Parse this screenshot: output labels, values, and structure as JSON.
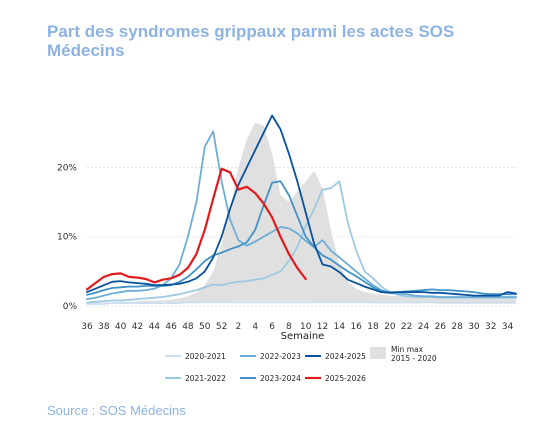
{
  "title": "Part des syndromes grippaux parmi les actes SOS Médecins",
  "source": "Source : SOS Médecins",
  "chart_data": {
    "type": "line",
    "xlabel": "Semaine",
    "ylabel": "",
    "x_tick_labels": [
      "36",
      "38",
      "40",
      "42",
      "44",
      "46",
      "48",
      "50",
      "52",
      "2",
      "4",
      "6",
      "8",
      "10",
      "12",
      "14",
      "16",
      "18",
      "20",
      "22",
      "24",
      "26",
      "28",
      "30",
      "32",
      "34"
    ],
    "y_tick_labels": [
      "0%",
      "10%",
      "20%"
    ],
    "ylim": [
      0,
      28
    ],
    "grid": true,
    "legend_position": "bottom",
    "band": {
      "name": "Min max 2015 - 2020",
      "color": "#e0e0e0",
      "upper": [
        0.5,
        0.5,
        0.5,
        0.5,
        0.6,
        0.6,
        0.7,
        0.8,
        0.8,
        0.8,
        0.9,
        1.1,
        1.4,
        1.9,
        3.0,
        5.0,
        9.0,
        14.0,
        20.0,
        24.0,
        26.5,
        26.0,
        22.0,
        16.0,
        15.0,
        16.5,
        18.0,
        19.5,
        17.0,
        11.0,
        6.0,
        3.5,
        2.5,
        2.0,
        1.8,
        1.6,
        1.5,
        1.4,
        1.4,
        1.3,
        1.3,
        1.3,
        1.2,
        1.2,
        1.2,
        1.2,
        1.2,
        1.2,
        1.2,
        1.2,
        1.2,
        1.2
      ],
      "lower": [
        0.3,
        0.3,
        0.3,
        0.3,
        0.3,
        0.3,
        0.3,
        0.3,
        0.4,
        0.4,
        0.4,
        0.4,
        0.4,
        0.4,
        0.5,
        0.5,
        0.5,
        0.6,
        0.6,
        0.6,
        0.6,
        0.6,
        0.6,
        0.6,
        0.6,
        0.6,
        0.6,
        0.6,
        0.5,
        0.5,
        0.5,
        0.5,
        0.5,
        0.5,
        0.4,
        0.4,
        0.4,
        0.4,
        0.4,
        0.4,
        0.4,
        0.4,
        0.3,
        0.3,
        0.3,
        0.3,
        0.3,
        0.3,
        0.3,
        0.3,
        0.3,
        0.3
      ]
    },
    "series": [
      {
        "name": "2020-2021",
        "color": "#c9dff0",
        "values": [
          0.3,
          0.3,
          0.3,
          0.4,
          0.4,
          0.4,
          0.4,
          0.4,
          0.4,
          0.4,
          0.4,
          0.4,
          0.5,
          0.5,
          0.5,
          0.5,
          0.5,
          0.5,
          0.5,
          0.5,
          0.5,
          0.5,
          0.5,
          0.5,
          0.5,
          0.5,
          0.5,
          0.5,
          0.5,
          0.5,
          0.5,
          0.5,
          0.5,
          0.5,
          0.5,
          0.5,
          0.5,
          0.5,
          0.5,
          0.5,
          0.5,
          0.5,
          0.5,
          0.5,
          0.5,
          0.5,
          0.5,
          0.5,
          0.5,
          0.5,
          0.5,
          0.5
        ]
      },
      {
        "name": "2021-2022",
        "color": "#9ecae1",
        "values": [
          0.5,
          0.6,
          0.7,
          0.8,
          0.8,
          0.9,
          1.0,
          1.1,
          1.2,
          1.3,
          1.5,
          1.7,
          2.0,
          2.3,
          2.7,
          3.1,
          3.0,
          3.3,
          3.5,
          3.6,
          3.8,
          4.0,
          4.5,
          5.0,
          6.5,
          8.5,
          11.5,
          14.0,
          16.8,
          17.0,
          18.0,
          12.0,
          8.0,
          5.0,
          4.0,
          2.8,
          2.0,
          1.6,
          1.4,
          1.3,
          1.3,
          1.3,
          1.2,
          1.2,
          1.2,
          1.2,
          1.2,
          1.2,
          1.2,
          1.2,
          1.2,
          1.2
        ]
      },
      {
        "name": "2022-2023",
        "color": "#6baed6",
        "values": [
          1.0,
          1.2,
          1.5,
          1.8,
          2.0,
          2.2,
          2.2,
          2.3,
          2.5,
          3.0,
          4.0,
          6.0,
          10.0,
          15.0,
          23.0,
          25.2,
          18.0,
          12.5,
          9.5,
          8.7,
          9.3,
          10.0,
          10.7,
          11.4,
          11.2,
          10.5,
          9.4,
          8.5,
          9.5,
          8.0,
          7.0,
          6.0,
          5.0,
          4.0,
          3.0,
          2.3,
          1.9,
          1.8,
          1.7,
          1.5,
          1.4,
          1.4,
          1.3,
          1.3,
          1.3,
          1.3,
          1.3,
          1.3,
          1.3,
          1.3,
          1.3,
          1.3
        ]
      },
      {
        "name": "2023-2024",
        "color": "#4292c6",
        "values": [
          1.6,
          1.9,
          2.3,
          2.6,
          2.7,
          2.8,
          2.8,
          2.9,
          2.9,
          2.9,
          3.0,
          3.5,
          4.2,
          5.3,
          6.5,
          7.3,
          7.7,
          8.2,
          8.6,
          9.2,
          11.0,
          14.5,
          17.8,
          18.0,
          16.0,
          13.0,
          10.0,
          8.5,
          7.3,
          6.7,
          5.8,
          5.0,
          4.3,
          3.5,
          2.7,
          2.2,
          2.0,
          2.0,
          2.1,
          2.2,
          2.3,
          2.4,
          2.3,
          2.3,
          2.2,
          2.1,
          2.0,
          1.8,
          1.7,
          1.7,
          1.7,
          1.7
        ]
      },
      {
        "name": "2024-2025",
        "color": "#08519c",
        "values": [
          2.0,
          2.5,
          3.0,
          3.5,
          3.6,
          3.4,
          3.3,
          3.2,
          3.0,
          3.0,
          3.1,
          3.2,
          3.5,
          4.0,
          5.0,
          7.0,
          10.0,
          14.0,
          17.5,
          20.0,
          22.5,
          25.0,
          27.5,
          25.5,
          22.0,
          18.0,
          13.5,
          9.0,
          6.0,
          5.7,
          4.9,
          3.8,
          3.3,
          2.8,
          2.4,
          2.0,
          1.9,
          2.0,
          2.0,
          2.0,
          2.0,
          1.9,
          1.9,
          1.8,
          1.7,
          1.6,
          1.5,
          1.5,
          1.5,
          1.5,
          2.0,
          1.8
        ]
      },
      {
        "name": "2025-2026",
        "color": "#e31a1c",
        "values": [
          2.4,
          3.3,
          4.2,
          4.6,
          4.7,
          4.2,
          4.1,
          3.9,
          3.4,
          3.8,
          4.0,
          4.5,
          5.5,
          7.5,
          11.0,
          15.5,
          19.8,
          19.3,
          16.8,
          17.2,
          16.3,
          14.8,
          12.8,
          10.0,
          7.5,
          5.5,
          3.9
        ]
      }
    ]
  }
}
